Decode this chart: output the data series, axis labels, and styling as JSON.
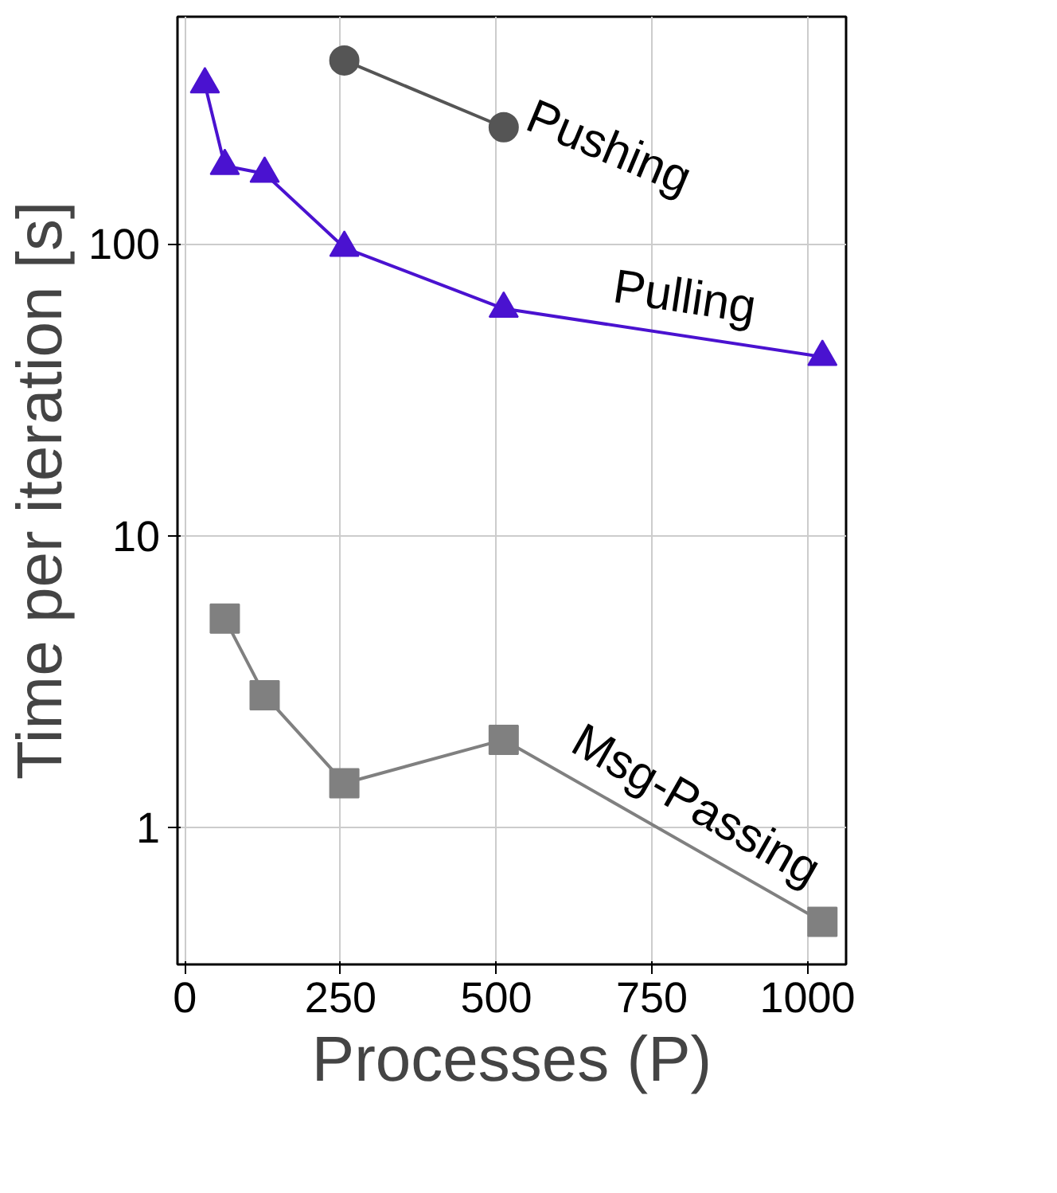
{
  "chart_data": {
    "type": "line",
    "xlabel": "Processes (P)",
    "ylabel": "Time per iteration [s]",
    "log": "y",
    "grid": true,
    "line_style": "solid",
    "xlim": [
      -12,
      1062
    ],
    "xticks": [
      0,
      250,
      500,
      750,
      1000
    ],
    "ylim": [
      0.34,
      600
    ],
    "yticks": [
      1,
      10,
      100
    ],
    "series": [
      {
        "name": "Pushing",
        "color": "#555555",
        "marker": "circle",
        "x": [
          256,
          512
        ],
        "values": [
          425,
          251
        ]
      },
      {
        "name": "Pulling",
        "color": "#4a12d0",
        "marker": "triangle",
        "x": [
          32,
          64,
          128,
          256,
          512,
          1024
        ],
        "values": [
          352,
          185,
          174,
          97,
          60,
          41
        ]
      },
      {
        "name": "Msg-Passing",
        "color": "#808080",
        "marker": "square",
        "x": [
          64,
          128,
          256,
          512,
          1024
        ],
        "values": [
          5.2,
          2.84,
          1.42,
          2.0,
          0.476
        ]
      }
    ]
  }
}
